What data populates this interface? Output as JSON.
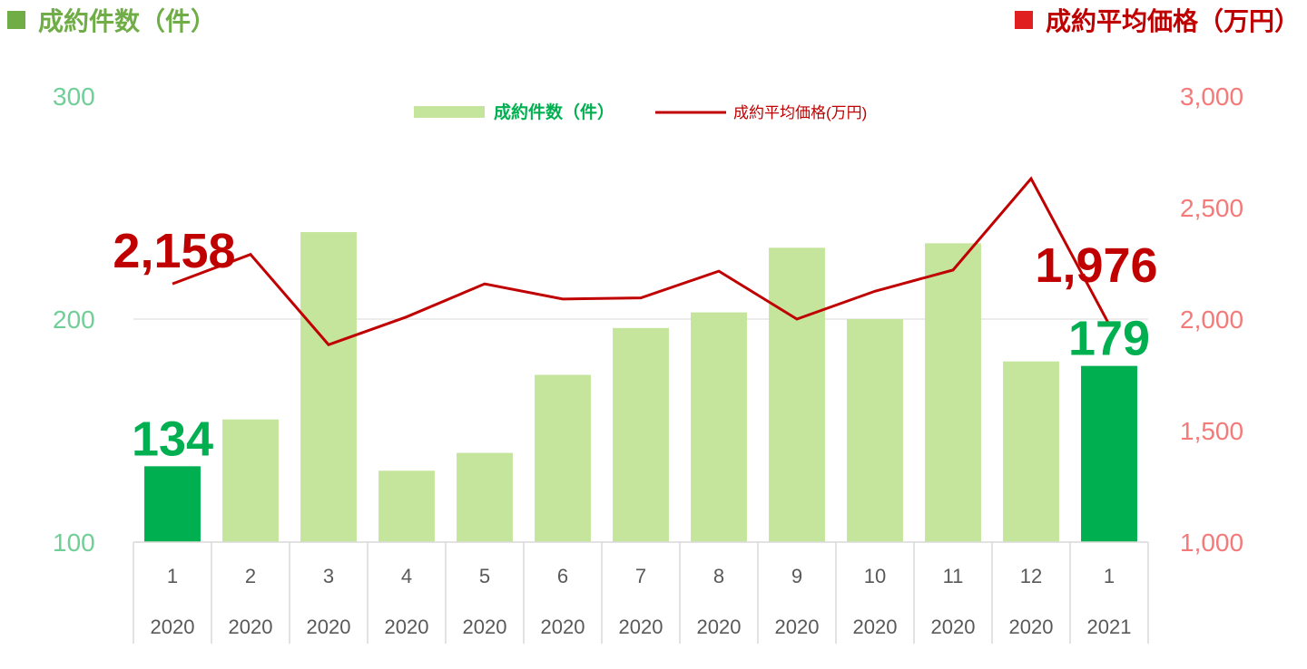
{
  "header": {
    "left_title": "成約件数（件）",
    "right_title": "成約平均価格（万円）"
  },
  "colors": {
    "bar_light": "#c5e59c",
    "bar_highlight": "#00b050",
    "line": "#c00000",
    "left_axis_text": "#6fcf97",
    "right_axis_text": "#f47a7a",
    "left_title": "#70ad47",
    "right_title": "#c00000",
    "right_square": "#e02020",
    "gridline": "#d9d9d9",
    "category_text": "#595959"
  },
  "chart_data": {
    "type": "bar",
    "categories": [
      "1",
      "2",
      "3",
      "4",
      "5",
      "6",
      "7",
      "8",
      "9",
      "10",
      "11",
      "12",
      "1"
    ],
    "years": [
      "2020",
      "2020",
      "2020",
      "2020",
      "2020",
      "2020",
      "2020",
      "2020",
      "2020",
      "2020",
      "2020",
      "2020",
      "2021"
    ],
    "series": [
      {
        "name": "成約件数（件）",
        "type": "bar",
        "axis": "left",
        "values": [
          134,
          155,
          239,
          132,
          140,
          175,
          196,
          203,
          232,
          200,
          234,
          181,
          179
        ],
        "highlight": [
          true,
          false,
          false,
          false,
          false,
          false,
          false,
          false,
          false,
          false,
          false,
          false,
          true
        ]
      },
      {
        "name": "成約平均価格(万円)",
        "type": "line",
        "axis": "right",
        "values": [
          2158,
          2290,
          1885,
          2010,
          2158,
          2090,
          2095,
          2215,
          2000,
          2125,
          2220,
          2630,
          1976
        ]
      }
    ],
    "left_axis": {
      "min": 100,
      "max": 300,
      "ticks": [
        "100",
        "200",
        "300"
      ]
    },
    "right_axis": {
      "min": 1000,
      "max": 3000,
      "ticks": [
        "1,000",
        "1,500",
        "2,000",
        "2,500",
        "3,000"
      ]
    },
    "gridline_values": [
      200
    ],
    "legend_position": "top-center",
    "annotations": {
      "first_bar": "134",
      "last_bar": "179",
      "first_line": "2,158",
      "last_line": "1,976"
    }
  }
}
